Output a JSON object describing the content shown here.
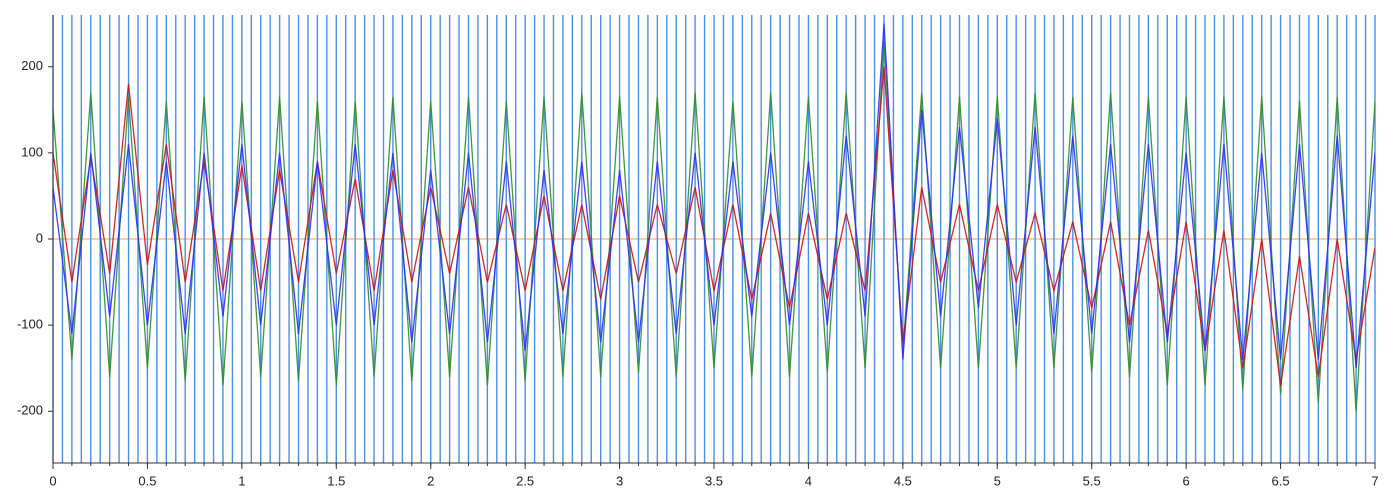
{
  "chart_data": {
    "type": "line",
    "x": [
      0,
      0.1,
      0.2,
      0.3,
      0.4,
      0.5,
      0.6,
      0.7,
      0.8,
      0.9,
      1,
      1.1,
      1.2,
      1.3,
      1.4,
      1.5,
      1.6,
      1.7,
      1.8,
      1.9,
      2,
      2.1,
      2.2,
      2.3,
      2.4,
      2.5,
      2.6,
      2.7,
      2.8,
      2.9,
      3,
      3.1,
      3.2,
      3.3,
      3.4,
      3.5,
      3.6,
      3.7,
      3.8,
      3.9,
      4,
      4.1,
      4.2,
      4.3,
      4.4,
      4.5,
      4.6,
      4.7,
      4.8,
      4.9,
      5,
      5.1,
      5.2,
      5.3,
      5.4,
      5.5,
      5.6,
      5.7,
      5.8,
      5.9,
      6,
      6.1,
      6.2,
      6.3,
      6.4,
      6.5,
      6.6,
      6.7,
      6.8,
      6.9,
      7
    ],
    "series": [
      {
        "color": "#2e8b2e",
        "values": [
          150,
          -140,
          170,
          -160,
          165,
          -150,
          160,
          -165,
          165,
          -170,
          160,
          -160,
          165,
          -165,
          160,
          -170,
          160,
          -160,
          165,
          -165,
          160,
          -160,
          165,
          -170,
          160,
          -165,
          165,
          -160,
          170,
          -160,
          165,
          -155,
          165,
          -160,
          170,
          -150,
          160,
          -160,
          170,
          -160,
          165,
          -155,
          170,
          -150,
          230,
          -130,
          170,
          -150,
          165,
          -150,
          165,
          -150,
          170,
          -150,
          165,
          -155,
          170,
          -160,
          165,
          -170,
          165,
          -170,
          165,
          -175,
          165,
          -180,
          160,
          -190,
          165,
          -200,
          160
        ]
      },
      {
        "color": "#cc1111",
        "values": [
          100,
          -50,
          95,
          -40,
          180,
          -30,
          110,
          -50,
          90,
          -60,
          85,
          -60,
          80,
          -50,
          90,
          -40,
          70,
          -60,
          80,
          -50,
          60,
          -40,
          60,
          -50,
          40,
          -60,
          50,
          -60,
          40,
          -70,
          50,
          -50,
          40,
          -40,
          60,
          -60,
          40,
          -70,
          30,
          -80,
          30,
          -70,
          30,
          -60,
          200,
          -120,
          60,
          -50,
          40,
          -60,
          40,
          -50,
          30,
          -60,
          20,
          -80,
          20,
          -100,
          10,
          -110,
          20,
          -130,
          10,
          -150,
          0,
          -170,
          -20,
          -160,
          0,
          -140,
          -10
        ]
      },
      {
        "color": "#2b2bff",
        "values": [
          60,
          -110,
          100,
          -90,
          110,
          -100,
          90,
          -110,
          100,
          -90,
          110,
          -100,
          100,
          -110,
          90,
          -100,
          110,
          -100,
          100,
          -120,
          80,
          -110,
          100,
          -120,
          90,
          -130,
          80,
          -110,
          90,
          -120,
          80,
          -120,
          90,
          -110,
          100,
          -100,
          90,
          -90,
          100,
          -100,
          90,
          -100,
          120,
          -90,
          250,
          -140,
          150,
          -90,
          130,
          -80,
          140,
          -100,
          130,
          -110,
          120,
          -110,
          110,
          -120,
          110,
          -120,
          100,
          -130,
          110,
          -140,
          100,
          -140,
          110,
          -140,
          120,
          -150,
          100
        ]
      }
    ],
    "event_interval": 0.05,
    "event_color": "#4a90e2",
    "xlim": [
      0,
      7
    ],
    "xticks": [
      0,
      0.5,
      1,
      1.5,
      2,
      2.5,
      3,
      3.5,
      4,
      4.5,
      5,
      5.5,
      6,
      6.5,
      7
    ],
    "ylim": [
      -260,
      260
    ],
    "yticks": [
      -200,
      -100,
      0,
      100,
      200
    ],
    "grid": true,
    "grid_color": "#e8a060"
  }
}
